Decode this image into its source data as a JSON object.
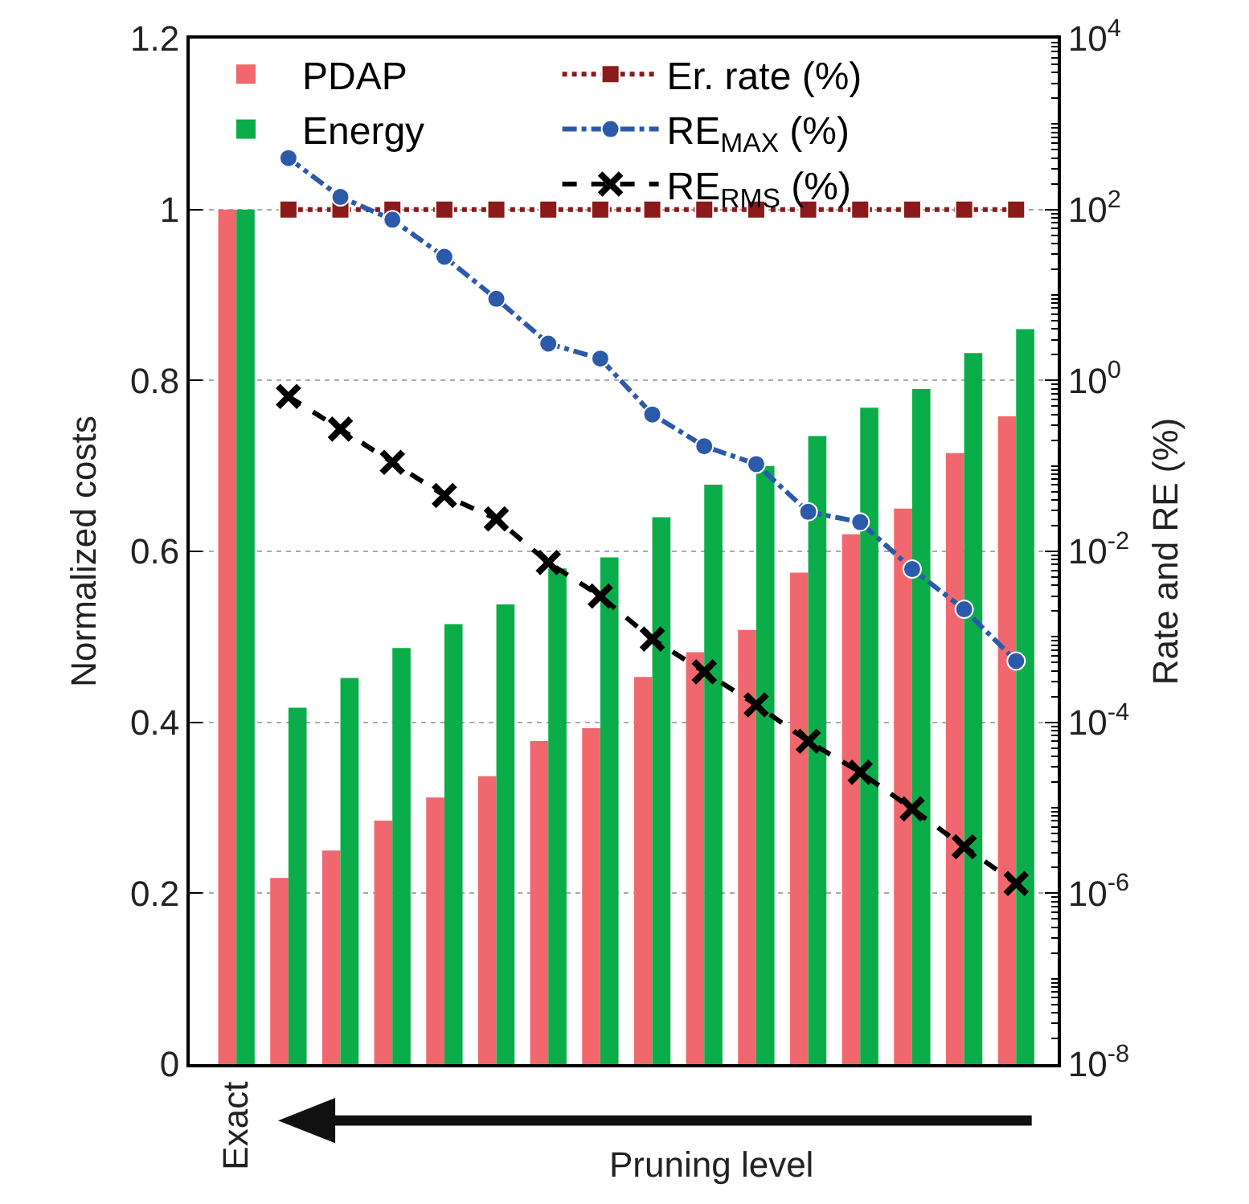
{
  "chart_data": {
    "type": "bar",
    "categories": [
      "Exact",
      null,
      null,
      null,
      null,
      null,
      null,
      null,
      null,
      null,
      null,
      null,
      null,
      null,
      null,
      null
    ],
    "xlabel": "Pruning level",
    "ylabel": "Normalized costs",
    "y2label": "Rate and RE (%)",
    "series": [
      {
        "name": "PDAP",
        "color": "#f0676e",
        "values": [
          1,
          0.218,
          0.25,
          0.285,
          0.312,
          0.337,
          0.378,
          0.393,
          0.453,
          0.482,
          0.508,
          0.575,
          0.62,
          0.65,
          0.715,
          0.758
        ]
      },
      {
        "name": "Energy",
        "color": "#0aad4a",
        "values": [
          1,
          0.417,
          0.452,
          0.487,
          0.515,
          0.538,
          0.58,
          0.593,
          0.64,
          0.678,
          0.7,
          0.735,
          0.768,
          0.79,
          0.832,
          0.86
        ]
      },
      {
        "name": "Er. rate (%)",
        "type": "line",
        "axis": "y2",
        "color": "#8b1a1a",
        "marker": "square",
        "line_style": "dotted",
        "values": [
          null,
          100,
          100,
          100,
          100,
          100,
          100,
          100,
          100,
          100,
          100,
          100,
          100,
          100,
          100,
          100
        ]
      },
      {
        "name": "RE$_{MAX}$ (%)",
        "type": "line",
        "axis": "y2",
        "color": "#2b5aab",
        "marker": "circle",
        "line_style": "dashdot",
        "values": [
          null,
          400,
          140,
          76,
          28,
          9,
          2.7,
          1.8,
          0.4,
          0.17,
          0.105,
          0.029,
          0.022,
          0.0062,
          0.0021,
          0.00052
        ]
      },
      {
        "name": "RE$_{RMS}$ (%)",
        "type": "line",
        "axis": "y2",
        "color": "#000000",
        "marker": "cross",
        "line_style": "dashed",
        "values": [
          null,
          0.65,
          0.27,
          0.11,
          0.045,
          0.024,
          0.0074,
          0.003,
          0.00094,
          0.00039,
          0.00016,
          6e-05,
          2.6e-05,
          9.7e-06,
          3.5e-06,
          1.3e-06
        ]
      }
    ],
    "ylim": [
      0,
      1.2
    ],
    "yticks": [
      0,
      0.2,
      0.4,
      0.6,
      0.8,
      1,
      1.2
    ],
    "y2lim": [
      1e-08,
      10000
    ],
    "log": "y2",
    "y2ticks": [
      {
        "value": 1e-08,
        "label": "10$^{-8}$"
      },
      {
        "value": 1e-06,
        "label": "10$^{-6}$"
      },
      {
        "value": 0.0001,
        "label": "10$^{-4}$"
      },
      {
        "value": 0.01,
        "label": "10$^{-2}$"
      },
      {
        "value": 1,
        "label": "10$^{0}$"
      },
      {
        "value": 100,
        "label": "10$^{2}$"
      },
      {
        "value": 10000,
        "label": "10$^{4}$"
      }
    ],
    "grid": "y",
    "legend": "top"
  }
}
